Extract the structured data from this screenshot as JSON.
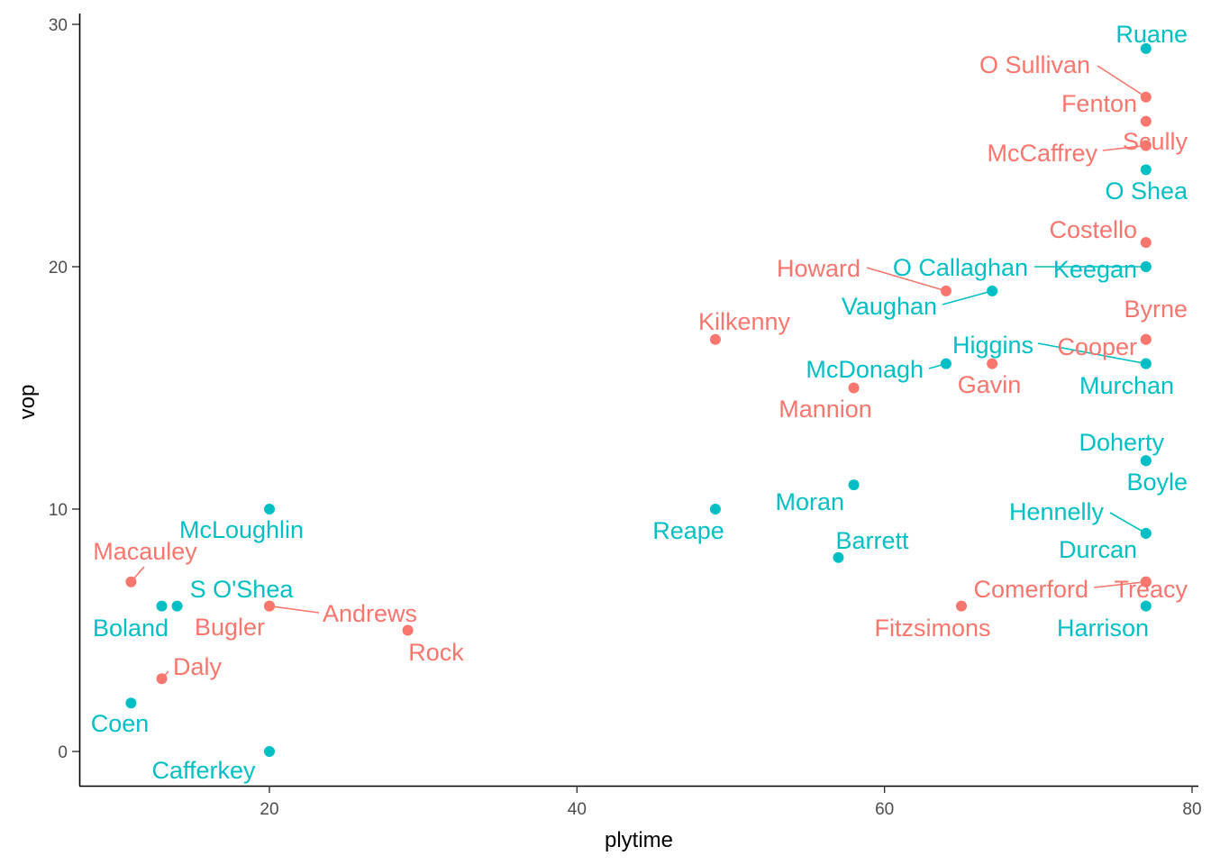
{
  "chart_data": {
    "type": "scatter",
    "title": "",
    "xlabel": "plytime",
    "ylabel": "vop",
    "xlim": [
      8,
      80
    ],
    "ylim": [
      -1.4,
      30.6
    ],
    "xticks": [
      "20",
      "40",
      "60",
      "80"
    ],
    "yticks": [
      "0",
      "10",
      "20",
      "30"
    ],
    "grid": false,
    "legend": "none",
    "colors": {
      "group_a": "#F8766D",
      "group_b": "#00BFC4",
      "axis": "#000000",
      "tick_text": "#4d4d4d"
    },
    "points": [
      {
        "label": "Ruane",
        "x": 77,
        "y": 29,
        "group": "group_b"
      },
      {
        "label": "O Sullivan",
        "x": 77,
        "y": 27,
        "group": "group_a"
      },
      {
        "label": "Fenton",
        "x": 77,
        "y": 26,
        "group": "group_a"
      },
      {
        "label": "Scully",
        "x": 77,
        "y": 25,
        "group": "group_a"
      },
      {
        "label": "McCaffrey",
        "x": 77,
        "y": 25,
        "group": "group_a"
      },
      {
        "label": "O Shea",
        "x": 77,
        "y": 24,
        "group": "group_b"
      },
      {
        "label": "Costello",
        "x": 77,
        "y": 21,
        "group": "group_a"
      },
      {
        "label": "Keegan",
        "x": 77,
        "y": 20,
        "group": "group_b"
      },
      {
        "label": "O Callaghan",
        "x": 77,
        "y": 20,
        "group": "group_b"
      },
      {
        "label": "Howard",
        "x": 64,
        "y": 19,
        "group": "group_a"
      },
      {
        "label": "Vaughan",
        "x": 67,
        "y": 19,
        "group": "group_b"
      },
      {
        "label": "Byrne",
        "x": 77,
        "y": 17,
        "group": "group_a"
      },
      {
        "label": "Kilkenny",
        "x": 49,
        "y": 17,
        "group": "group_a"
      },
      {
        "label": "Cooper",
        "x": 77,
        "y": 17,
        "group": "group_a"
      },
      {
        "label": "Higgins",
        "x": 77,
        "y": 16,
        "group": "group_b"
      },
      {
        "label": "Murchan",
        "x": 77,
        "y": 16,
        "group": "group_b"
      },
      {
        "label": "McDonagh",
        "x": 64,
        "y": 16,
        "group": "group_b"
      },
      {
        "label": "Gavin",
        "x": 67,
        "y": 16,
        "group": "group_a"
      },
      {
        "label": "Mannion",
        "x": 58,
        "y": 15,
        "group": "group_a"
      },
      {
        "label": "Doherty",
        "x": 77,
        "y": 12,
        "group": "group_b"
      },
      {
        "label": "Boyle",
        "x": 77,
        "y": 12,
        "group": "group_b"
      },
      {
        "label": "Moran",
        "x": 58,
        "y": 11,
        "group": "group_b"
      },
      {
        "label": "Reape",
        "x": 49,
        "y": 10,
        "group": "group_b"
      },
      {
        "label": "McLoughlin",
        "x": 20,
        "y": 10,
        "group": "group_b"
      },
      {
        "label": "Hennelly",
        "x": 77,
        "y": 9,
        "group": "group_b"
      },
      {
        "label": "Durcan",
        "x": 77,
        "y": 9,
        "group": "group_b"
      },
      {
        "label": "Barrett",
        "x": 57,
        "y": 8,
        "group": "group_b"
      },
      {
        "label": "Macauley",
        "x": 11,
        "y": 7,
        "group": "group_a"
      },
      {
        "label": "Comerford",
        "x": 77,
        "y": 7,
        "group": "group_a"
      },
      {
        "label": "Treacy",
        "x": 77,
        "y": 7,
        "group": "group_a"
      },
      {
        "label": "S O'Shea",
        "x": 14,
        "y": 6,
        "group": "group_b"
      },
      {
        "label": "Boland",
        "x": 13,
        "y": 6,
        "group": "group_b"
      },
      {
        "label": "Bugler",
        "x": 20,
        "y": 6,
        "group": "group_a"
      },
      {
        "label": "Andrews",
        "x": 20,
        "y": 6,
        "group": "group_a"
      },
      {
        "label": "Harrison",
        "x": 77,
        "y": 6,
        "group": "group_b"
      },
      {
        "label": "Fitzsimons",
        "x": 65,
        "y": 6,
        "group": "group_a"
      },
      {
        "label": "Rock",
        "x": 29,
        "y": 5,
        "group": "group_a"
      },
      {
        "label": "Daly",
        "x": 13,
        "y": 3,
        "group": "group_a"
      },
      {
        "label": "Coen",
        "x": 11,
        "y": 2,
        "group": "group_b"
      },
      {
        "label": "Cafferkey",
        "x": 20,
        "y": 0,
        "group": "group_b"
      }
    ]
  }
}
